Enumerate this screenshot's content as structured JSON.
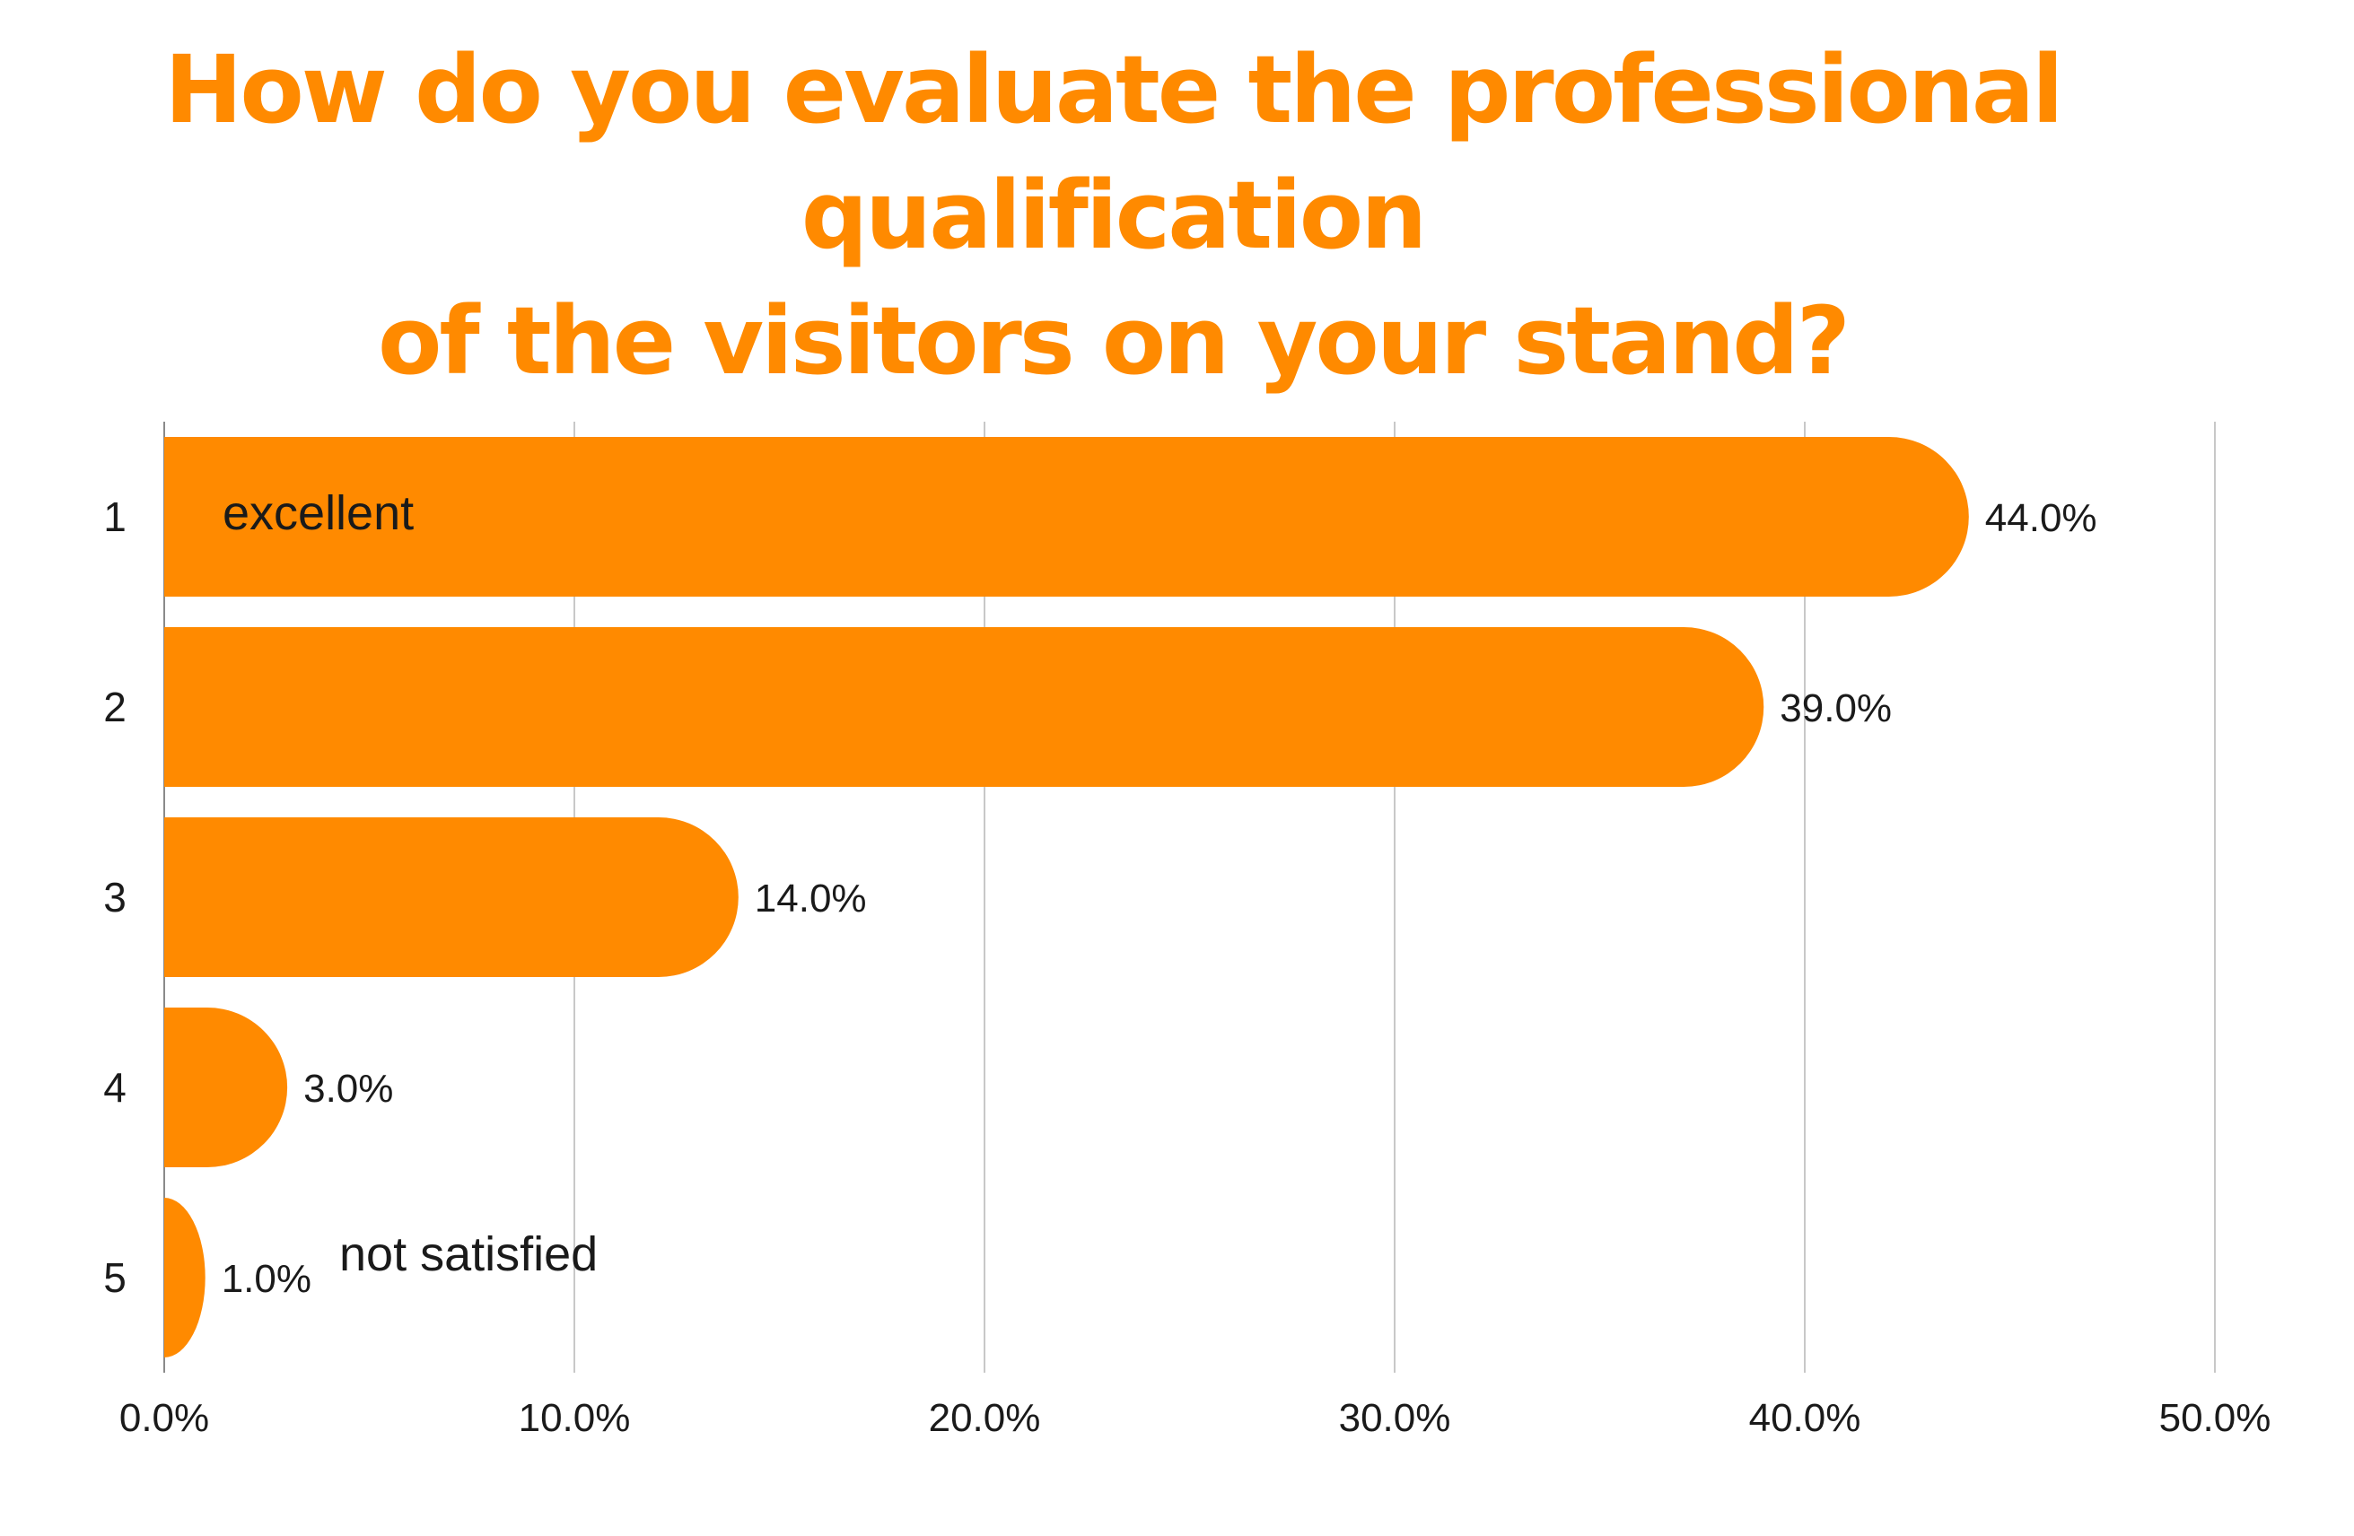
{
  "title": {
    "line1": "How do you evaluate the professional qualification",
    "line2": "of the visitors on your stand?"
  },
  "colors": {
    "bar": "#ff8a00",
    "title": "#ff8a00",
    "grid": "#c8c8c8",
    "text": "#1a1a1a"
  },
  "chart_data": {
    "type": "bar",
    "orientation": "horizontal",
    "categories": [
      "1",
      "2",
      "3",
      "4",
      "5"
    ],
    "values": [
      44.0,
      39.0,
      14.0,
      3.0,
      1.0
    ],
    "value_labels": [
      "44.0%",
      "39.0%",
      "14.0%",
      "3.0%",
      "1.0%"
    ],
    "xlim": [
      0,
      50
    ],
    "x_ticks": [
      0,
      10,
      20,
      30,
      40,
      50
    ],
    "x_tick_labels": [
      "0.0%",
      "10.0%",
      "20.0%",
      "30.0%",
      "40.0%",
      "50.0%"
    ],
    "annotations": [
      {
        "category": "1",
        "text": "excellent"
      },
      {
        "category": "5",
        "text": "not satisfied"
      }
    ],
    "grid": true,
    "legend": "none"
  }
}
